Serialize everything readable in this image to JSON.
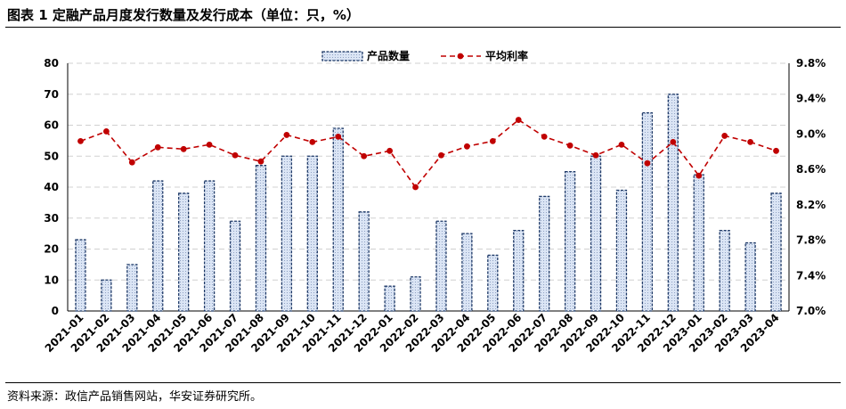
{
  "figure": {
    "title": "图表 1  定融产品月度发行数量及发行成本（单位：只，%）",
    "source": "资料来源：政信产品销售网站，华安证券研究所。"
  },
  "chart_data": {
    "type": "bar",
    "categories": [
      "2021-01",
      "2021-02",
      "2021-03",
      "2021-04",
      "2021-05",
      "2021-06",
      "2021-07",
      "2021-08",
      "2021-09",
      "2021-10",
      "2021-11",
      "2021-12",
      "2022-01",
      "2022-02",
      "2022-03",
      "2022-04",
      "2022-05",
      "2022-06",
      "2022-07",
      "2022-08",
      "2022-09",
      "2022-10",
      "2022-11",
      "2022-12",
      "2023-01",
      "2023-02",
      "2023-03",
      "2023-04"
    ],
    "series": [
      {
        "name": "产品数量",
        "type": "bar",
        "axis": "left",
        "values": [
          23,
          10,
          15,
          42,
          38,
          42,
          29,
          47,
          50,
          50,
          59,
          32,
          8,
          11,
          29,
          25,
          18,
          26,
          37,
          45,
          50,
          39,
          64,
          70,
          44,
          26,
          22,
          38
        ]
      },
      {
        "name": "平均利率",
        "type": "line",
        "axis": "right",
        "values": [
          8.92,
          9.03,
          8.68,
          8.85,
          8.83,
          8.88,
          8.76,
          8.69,
          8.99,
          8.91,
          8.97,
          8.75,
          8.81,
          8.4,
          8.76,
          8.86,
          8.92,
          9.16,
          8.97,
          8.87,
          8.76,
          8.88,
          8.67,
          8.91,
          8.53,
          8.98,
          8.91,
          8.81
        ]
      }
    ],
    "y_left": {
      "min": 0,
      "max": 80,
      "ticks": [
        "0",
        "10",
        "20",
        "30",
        "40",
        "50",
        "60",
        "70",
        "80"
      ]
    },
    "y_right": {
      "min": 7.0,
      "max": 9.8,
      "ticks": [
        "7.0%",
        "7.4%",
        "7.8%",
        "8.2%",
        "8.6%",
        "9.0%",
        "9.4%",
        "9.8%"
      ]
    },
    "grid": true,
    "legend_position": "top-center",
    "colors": {
      "bar_fill": "#dbe5f5",
      "bar_edge": "#1f3a68",
      "line": "#c00000",
      "grid": "#d0d0d0"
    }
  }
}
